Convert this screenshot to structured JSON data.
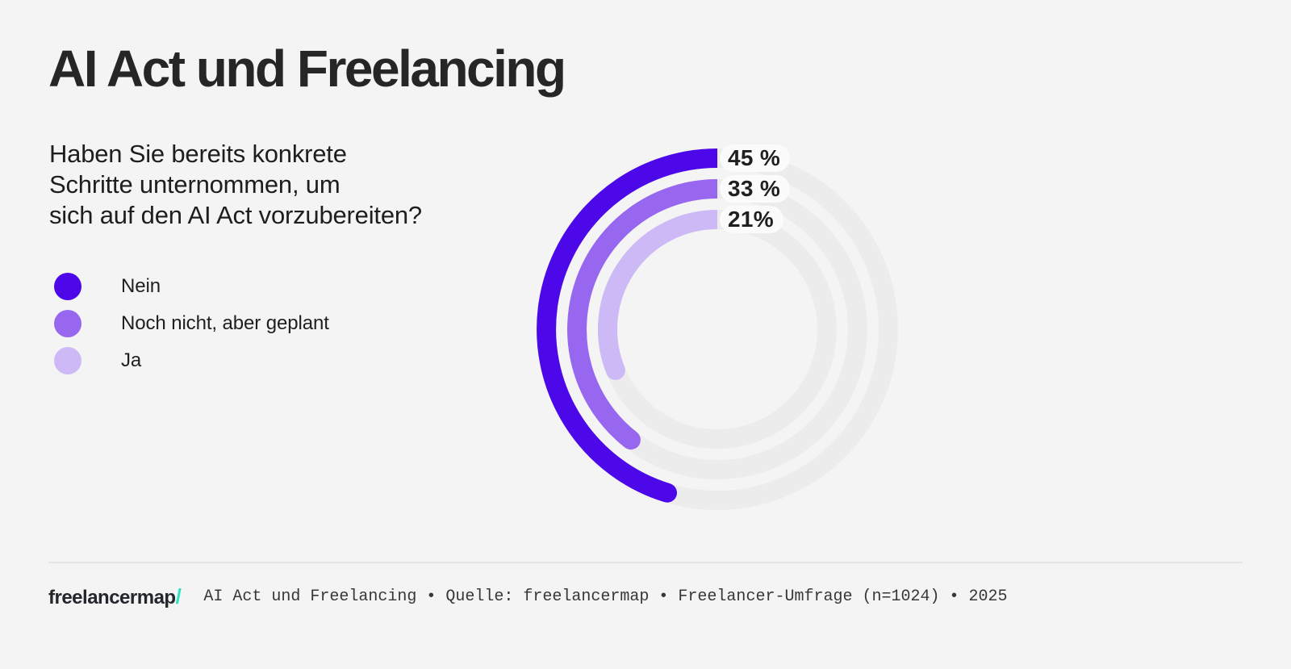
{
  "page": {
    "background": "#F4F4F5"
  },
  "header": {
    "title": "AI Act und Freelancing"
  },
  "question": {
    "lines": [
      "Haben Sie bereits konkrete",
      "Schritte unternommen, um",
      "sich auf den AI Act vorzubereiten?"
    ]
  },
  "legend": {
    "items": [
      {
        "label": "Nein",
        "color": "#4C08E8"
      },
      {
        "label": "Noch nicht, aber geplant",
        "color": "#9767F0"
      },
      {
        "label": "Ja",
        "color": "#CDB9F6"
      }
    ]
  },
  "chart_data": {
    "type": "radial-bar",
    "title": "Haben Sie bereits konkrete Schritte unternommen, um sich auf den AI Act vorzubereiten?",
    "categories": [
      "Nein",
      "Noch nicht, aber geplant",
      "Ja"
    ],
    "values": [
      45,
      33,
      21
    ],
    "unit": "%",
    "series": [
      {
        "name": "Nein",
        "value": 45,
        "label": "45 %",
        "color": "#4C08E8"
      },
      {
        "name": "Noch nicht, aber geplant",
        "value": 33,
        "label": "33 %",
        "color": "#9767F0"
      },
      {
        "name": "Ja",
        "value": 21,
        "label": "21%",
        "color": "#CDB9F6"
      }
    ],
    "track_color": "#ECECEC",
    "legend_position": "left",
    "layout": {
      "radii": [
        212,
        174,
        136
      ],
      "stroke": 24,
      "sweep_degrees": [
        163,
        142,
        112
      ],
      "start": "top",
      "direction": "counterclockwise"
    }
  },
  "footer": {
    "logo_text": "freelancermap",
    "logo_slash": "/",
    "logo_slash_color": "#2EE3C3",
    "source_text": "AI Act und Freelancing • Quelle: freelancermap • Freelancer-Umfrage (n=1024) • 2025"
  }
}
